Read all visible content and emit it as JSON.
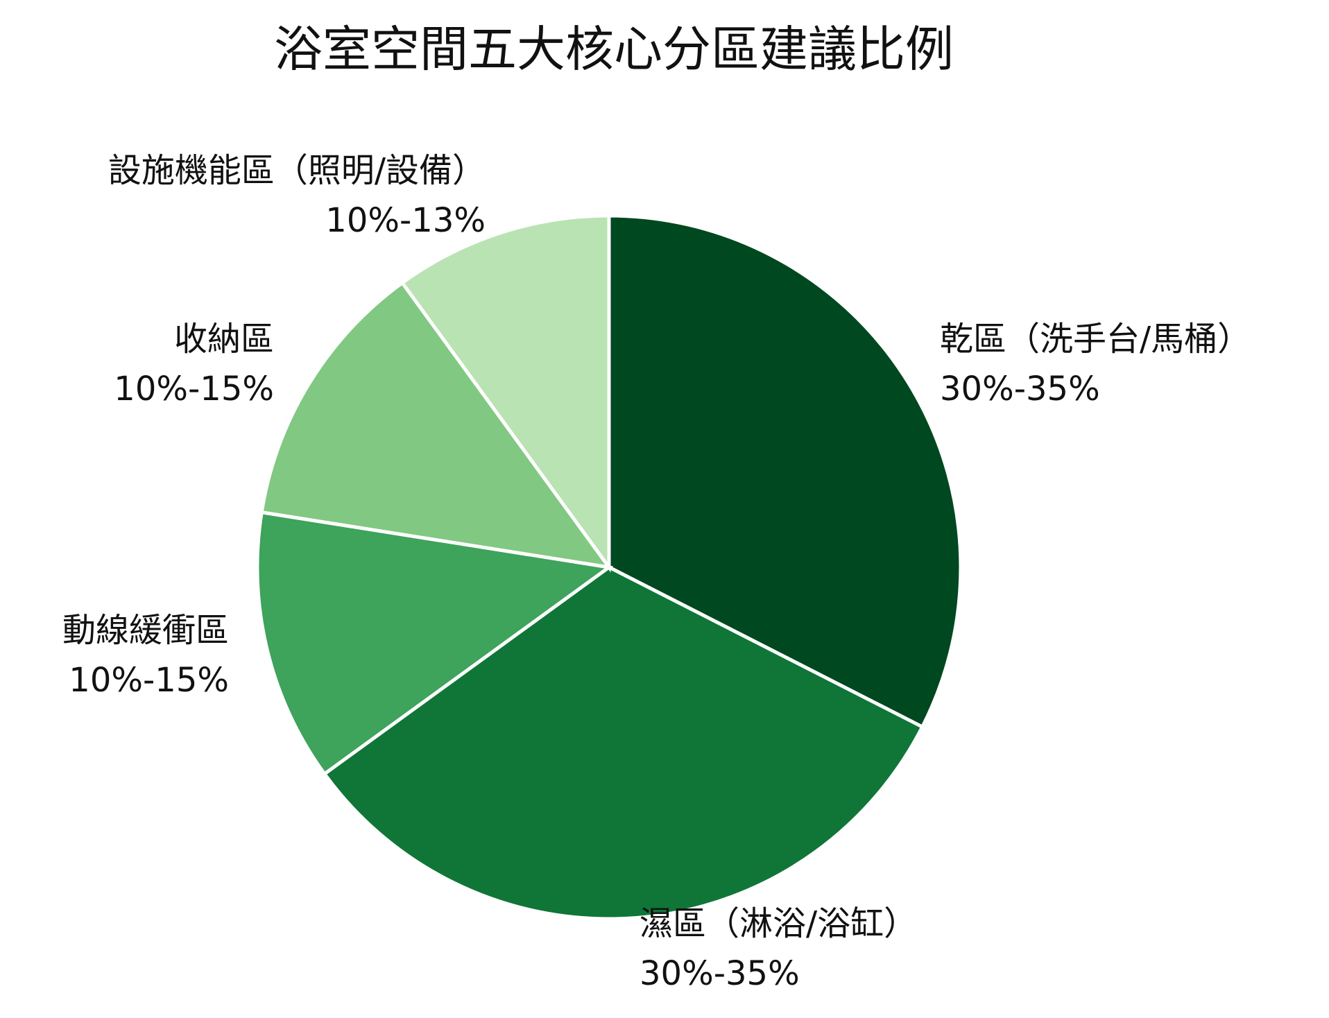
{
  "chart_data": {
    "type": "pie",
    "title": "浴室空間五大核心分區建議比例",
    "start_angle_deg": 0,
    "direction": "clockwise",
    "slices": [
      {
        "label": "乾區（洗手台/馬桶）",
        "range_text": "30%-35%",
        "value": 32.5,
        "color": "#00481f"
      },
      {
        "label": "濕區（淋浴/浴缸）",
        "range_text": "30%-35%",
        "value": 32.5,
        "color": "#0f7637"
      },
      {
        "label": "動線緩衝區",
        "range_text": "10%-15%",
        "value": 12.5,
        "color": "#3ea35b"
      },
      {
        "label": "收納區",
        "range_text": "10%-15%",
        "value": 12.5,
        "color": "#81c882"
      },
      {
        "label": "設施機能區（照明/設備）",
        "range_text": "10%-13%",
        "value": 10.0,
        "color": "#b9e3b2"
      }
    ]
  }
}
